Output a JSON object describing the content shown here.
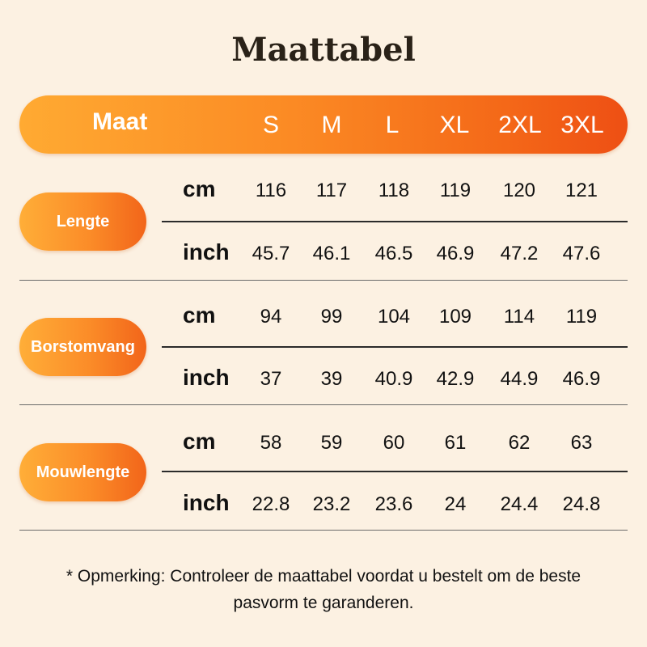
{
  "title": "Maattabel",
  "header": {
    "label": "Maat",
    "sizes": [
      "S",
      "M",
      "L",
      "XL",
      "2XL",
      "3XL"
    ]
  },
  "sections": [
    {
      "name": "Lengte",
      "rows": [
        {
          "unit": "cm",
          "values": [
            "116",
            "117",
            "118",
            "119",
            "120",
            "121"
          ]
        },
        {
          "unit": "inch",
          "values": [
            "45.7",
            "46.1",
            "46.5",
            "46.9",
            "47.2",
            "47.6"
          ]
        }
      ]
    },
    {
      "name": "Borstomvang",
      "rows": [
        {
          "unit": "cm",
          "values": [
            "94",
            "99",
            "104",
            "109",
            "114",
            "119"
          ]
        },
        {
          "unit": "inch",
          "values": [
            "37",
            "39",
            "40.9",
            "42.9",
            "44.9",
            "46.9"
          ]
        }
      ]
    },
    {
      "name": "Mouwlengte",
      "rows": [
        {
          "unit": "cm",
          "values": [
            "58",
            "59",
            "60",
            "61",
            "62",
            "63"
          ]
        },
        {
          "unit": "inch",
          "values": [
            "22.8",
            "23.2",
            "23.6",
            "24",
            "24.4",
            "24.8"
          ]
        }
      ]
    }
  ],
  "note": "* Opmerking: Controleer de maattabel voordat u bestelt om de beste pasvorm te garanderen.",
  "colors": {
    "background": "#fcf1e2",
    "accent_start": "#ffaa32",
    "accent_end": "#ee4f14"
  }
}
